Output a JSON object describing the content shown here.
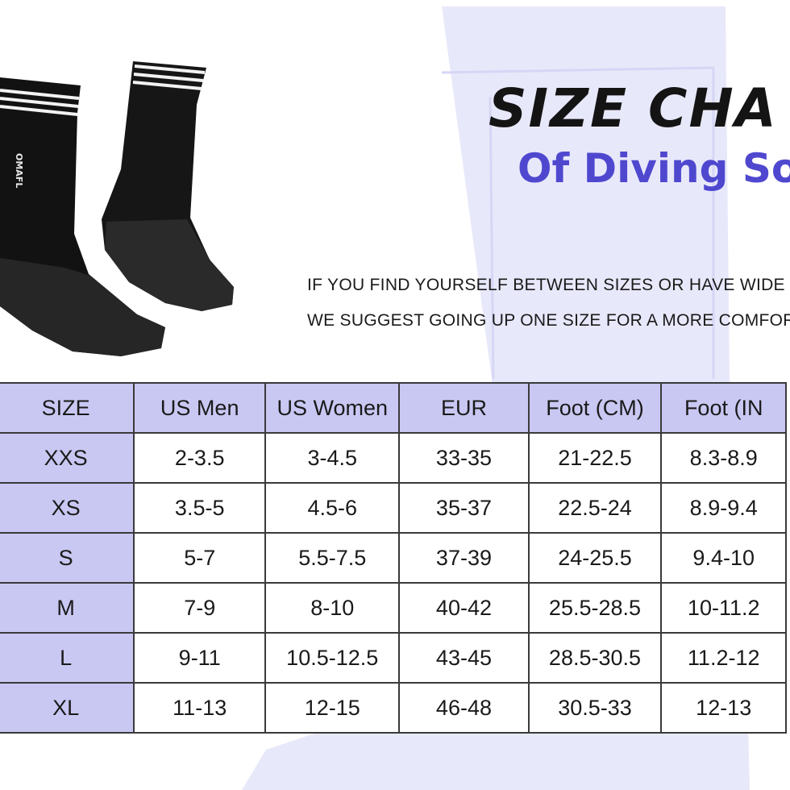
{
  "heading": {
    "title": "SIZE CHA",
    "subtitle": "Of Diving Soc"
  },
  "note": {
    "line1": "IF YOU FIND YOURSELF BETWEEN SIZES OR HAVE WIDE F",
    "line2": "WE SUGGEST GOING UP ONE SIZE FOR A MORE COMFOR"
  },
  "product": {
    "brand": "OMAFL"
  },
  "colors": {
    "header_bg": "#c9c8f3",
    "subtitle": "#4f48cf",
    "background_shape": "#e8e8fb"
  },
  "table": {
    "headers": [
      "SIZE",
      "US Men",
      "US Women",
      "EUR",
      "Foot (CM)",
      "Foot (IN"
    ],
    "rows": [
      [
        "XXS",
        "2-3.5",
        "3-4.5",
        "33-35",
        "21-22.5",
        "8.3-8.9"
      ],
      [
        "XS",
        "3.5-5",
        "4.5-6",
        "35-37",
        "22.5-24",
        "8.9-9.4"
      ],
      [
        "S",
        "5-7",
        "5.5-7.5",
        "37-39",
        "24-25.5",
        "9.4-10"
      ],
      [
        "M",
        "7-9",
        "8-10",
        "40-42",
        "25.5-28.5",
        "10-11.2"
      ],
      [
        "L",
        "9-11",
        "10.5-12.5",
        "43-45",
        "28.5-30.5",
        "11.2-12"
      ],
      [
        "XL",
        "11-13",
        "12-15",
        "46-48",
        "30.5-33",
        "12-13"
      ]
    ]
  }
}
